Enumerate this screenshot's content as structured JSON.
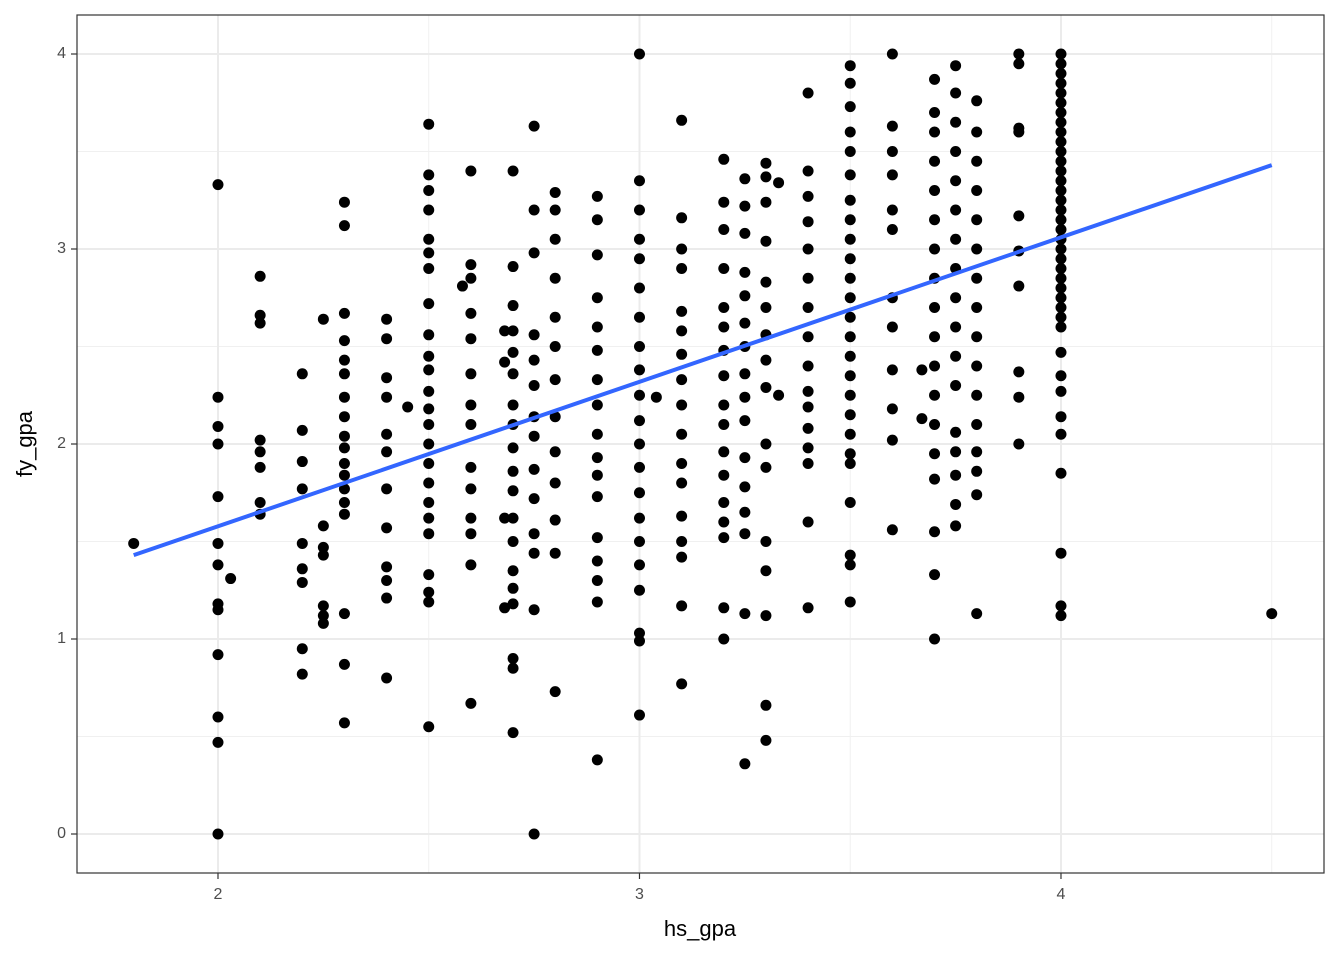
{
  "chart_data": {
    "type": "scatter",
    "x_label": "hs_gpa",
    "y_label": "fy_gpa",
    "xlim": [
      1.6655,
      4.624
    ],
    "ylim": [
      -0.2,
      4.2
    ],
    "xticks": [
      2,
      3,
      4
    ],
    "yticks": [
      0,
      1,
      2,
      3,
      4
    ],
    "minor_xticks": [
      2.5,
      3.5,
      4.5
    ],
    "minor_yticks": [
      0.5,
      1.5,
      2.5,
      3.5
    ],
    "grid": true,
    "color": "#000000",
    "fit": {
      "x": [
        1.8,
        4.5
      ],
      "y": [
        1.43,
        3.43
      ],
      "color": "#3366ff"
    },
    "points": [
      [
        1.8,
        1.49
      ],
      [
        2,
        3.33
      ],
      [
        2,
        2.24
      ],
      [
        2,
        2.09
      ],
      [
        2,
        2.0
      ],
      [
        2,
        1.73
      ],
      [
        2,
        1.49
      ],
      [
        2,
        1.38
      ],
      [
        2,
        1.18
      ],
      [
        2,
        1.15
      ],
      [
        2,
        0.92
      ],
      [
        2,
        0.6
      ],
      [
        2,
        0.47
      ],
      [
        2,
        0.0
      ],
      [
        2.03,
        1.31
      ],
      [
        2.1,
        2.86
      ],
      [
        2.1,
        2.66
      ],
      [
        2.1,
        2.62
      ],
      [
        2.1,
        2.02
      ],
      [
        2.1,
        1.96
      ],
      [
        2.1,
        1.88
      ],
      [
        2.1,
        1.7
      ],
      [
        2.1,
        1.64
      ],
      [
        2.2,
        2.36
      ],
      [
        2.2,
        2.07
      ],
      [
        2.2,
        1.91
      ],
      [
        2.2,
        1.77
      ],
      [
        2.2,
        1.49
      ],
      [
        2.2,
        1.36
      ],
      [
        2.2,
        1.29
      ],
      [
        2.2,
        0.95
      ],
      [
        2.2,
        0.82
      ],
      [
        2.25,
        2.64
      ],
      [
        2.25,
        1.58
      ],
      [
        2.25,
        1.47
      ],
      [
        2.25,
        1.43
      ],
      [
        2.25,
        1.17
      ],
      [
        2.25,
        1.12
      ],
      [
        2.25,
        1.08
      ],
      [
        2.3,
        3.24
      ],
      [
        2.3,
        3.12
      ],
      [
        2.3,
        2.67
      ],
      [
        2.3,
        2.53
      ],
      [
        2.3,
        2.43
      ],
      [
        2.3,
        2.36
      ],
      [
        2.3,
        2.24
      ],
      [
        2.3,
        2.14
      ],
      [
        2.3,
        2.04
      ],
      [
        2.3,
        1.98
      ],
      [
        2.3,
        1.9
      ],
      [
        2.3,
        1.84
      ],
      [
        2.3,
        1.77
      ],
      [
        2.3,
        1.7
      ],
      [
        2.3,
        1.64
      ],
      [
        2.3,
        1.13
      ],
      [
        2.3,
        0.87
      ],
      [
        2.3,
        0.57
      ],
      [
        2.4,
        2.64
      ],
      [
        2.4,
        2.54
      ],
      [
        2.4,
        2.34
      ],
      [
        2.4,
        2.24
      ],
      [
        2.4,
        2.05
      ],
      [
        2.4,
        1.96
      ],
      [
        2.4,
        1.77
      ],
      [
        2.4,
        1.57
      ],
      [
        2.4,
        1.37
      ],
      [
        2.4,
        1.3
      ],
      [
        2.4,
        1.21
      ],
      [
        2.4,
        0.8
      ],
      [
        2.45,
        2.19
      ],
      [
        2.5,
        3.64
      ],
      [
        2.5,
        3.38
      ],
      [
        2.5,
        3.3
      ],
      [
        2.5,
        3.2
      ],
      [
        2.5,
        3.05
      ],
      [
        2.5,
        2.98
      ],
      [
        2.5,
        2.9
      ],
      [
        2.5,
        2.72
      ],
      [
        2.5,
        2.56
      ],
      [
        2.5,
        2.45
      ],
      [
        2.5,
        2.38
      ],
      [
        2.5,
        2.27
      ],
      [
        2.5,
        2.18
      ],
      [
        2.5,
        2.1
      ],
      [
        2.5,
        2.0
      ],
      [
        2.5,
        1.9
      ],
      [
        2.5,
        1.8
      ],
      [
        2.5,
        1.7
      ],
      [
        2.5,
        1.62
      ],
      [
        2.5,
        1.54
      ],
      [
        2.5,
        1.33
      ],
      [
        2.5,
        1.24
      ],
      [
        2.5,
        1.19
      ],
      [
        2.5,
        0.55
      ],
      [
        2.58,
        2.81
      ],
      [
        2.6,
        3.4
      ],
      [
        2.6,
        2.92
      ],
      [
        2.6,
        2.85
      ],
      [
        2.6,
        2.67
      ],
      [
        2.6,
        2.54
      ],
      [
        2.6,
        2.36
      ],
      [
        2.6,
        2.2
      ],
      [
        2.6,
        2.1
      ],
      [
        2.6,
        1.88
      ],
      [
        2.6,
        1.77
      ],
      [
        2.6,
        1.62
      ],
      [
        2.6,
        1.54
      ],
      [
        2.6,
        1.38
      ],
      [
        2.6,
        0.67
      ],
      [
        2.68,
        2.58
      ],
      [
        2.68,
        2.42
      ],
      [
        2.68,
        1.62
      ],
      [
        2.68,
        1.16
      ],
      [
        2.7,
        3.4
      ],
      [
        2.7,
        2.91
      ],
      [
        2.7,
        2.71
      ],
      [
        2.7,
        2.58
      ],
      [
        2.7,
        2.47
      ],
      [
        2.7,
        2.36
      ],
      [
        2.7,
        2.2
      ],
      [
        2.7,
        2.1
      ],
      [
        2.7,
        1.98
      ],
      [
        2.7,
        1.86
      ],
      [
        2.7,
        1.76
      ],
      [
        2.7,
        1.62
      ],
      [
        2.7,
        1.5
      ],
      [
        2.7,
        1.35
      ],
      [
        2.7,
        1.26
      ],
      [
        2.7,
        1.18
      ],
      [
        2.7,
        0.9
      ],
      [
        2.7,
        0.85
      ],
      [
        2.7,
        0.52
      ],
      [
        2.75,
        3.63
      ],
      [
        2.75,
        3.2
      ],
      [
        2.75,
        2.98
      ],
      [
        2.75,
        2.56
      ],
      [
        2.75,
        2.43
      ],
      [
        2.75,
        2.3
      ],
      [
        2.75,
        2.14
      ],
      [
        2.75,
        2.04
      ],
      [
        2.75,
        1.87
      ],
      [
        2.75,
        1.72
      ],
      [
        2.75,
        1.54
      ],
      [
        2.75,
        1.44
      ],
      [
        2.75,
        1.15
      ],
      [
        2.75,
        0.0
      ],
      [
        2.8,
        3.29
      ],
      [
        2.8,
        3.2
      ],
      [
        2.8,
        3.05
      ],
      [
        2.8,
        2.85
      ],
      [
        2.8,
        2.65
      ],
      [
        2.8,
        2.5
      ],
      [
        2.8,
        2.33
      ],
      [
        2.8,
        2.14
      ],
      [
        2.8,
        1.96
      ],
      [
        2.8,
        1.8
      ],
      [
        2.8,
        1.61
      ],
      [
        2.8,
        1.44
      ],
      [
        2.8,
        0.73
      ],
      [
        2.9,
        3.27
      ],
      [
        2.9,
        3.15
      ],
      [
        2.9,
        2.97
      ],
      [
        2.9,
        2.75
      ],
      [
        2.9,
        2.6
      ],
      [
        2.9,
        2.48
      ],
      [
        2.9,
        2.33
      ],
      [
        2.9,
        2.2
      ],
      [
        2.9,
        2.05
      ],
      [
        2.9,
        1.93
      ],
      [
        2.9,
        1.84
      ],
      [
        2.9,
        1.73
      ],
      [
        2.9,
        1.52
      ],
      [
        2.9,
        1.4
      ],
      [
        2.9,
        1.3
      ],
      [
        2.9,
        1.19
      ],
      [
        2.9,
        0.38
      ],
      [
        3,
        4.0
      ],
      [
        3,
        3.35
      ],
      [
        3,
        3.2
      ],
      [
        3,
        3.05
      ],
      [
        3,
        2.95
      ],
      [
        3,
        2.8
      ],
      [
        3,
        2.65
      ],
      [
        3,
        2.5
      ],
      [
        3,
        2.38
      ],
      [
        3,
        2.25
      ],
      [
        3,
        2.12
      ],
      [
        3,
        2.0
      ],
      [
        3,
        1.88
      ],
      [
        3,
        1.75
      ],
      [
        3,
        1.62
      ],
      [
        3,
        1.5
      ],
      [
        3,
        1.38
      ],
      [
        3,
        1.25
      ],
      [
        3,
        1.03
      ],
      [
        3,
        0.99
      ],
      [
        3,
        0.61
      ],
      [
        3.04,
        2.24
      ],
      [
        3.1,
        3.66
      ],
      [
        3.1,
        3.16
      ],
      [
        3.1,
        3.0
      ],
      [
        3.1,
        2.9
      ],
      [
        3.1,
        2.68
      ],
      [
        3.1,
        2.58
      ],
      [
        3.1,
        2.46
      ],
      [
        3.1,
        2.33
      ],
      [
        3.1,
        2.2
      ],
      [
        3.1,
        2.05
      ],
      [
        3.1,
        1.9
      ],
      [
        3.1,
        1.8
      ],
      [
        3.1,
        1.63
      ],
      [
        3.1,
        1.5
      ],
      [
        3.1,
        1.42
      ],
      [
        3.1,
        1.17
      ],
      [
        3.1,
        0.77
      ],
      [
        3.2,
        3.46
      ],
      [
        3.2,
        3.24
      ],
      [
        3.2,
        3.1
      ],
      [
        3.2,
        2.9
      ],
      [
        3.2,
        2.7
      ],
      [
        3.2,
        2.6
      ],
      [
        3.2,
        2.48
      ],
      [
        3.2,
        2.35
      ],
      [
        3.2,
        2.2
      ],
      [
        3.2,
        2.1
      ],
      [
        3.2,
        1.96
      ],
      [
        3.2,
        1.84
      ],
      [
        3.2,
        1.7
      ],
      [
        3.2,
        1.6
      ],
      [
        3.2,
        1.52
      ],
      [
        3.2,
        1.16
      ],
      [
        3.2,
        1.0
      ],
      [
        3.25,
        3.36
      ],
      [
        3.25,
        3.22
      ],
      [
        3.25,
        3.08
      ],
      [
        3.25,
        2.88
      ],
      [
        3.25,
        2.76
      ],
      [
        3.25,
        2.62
      ],
      [
        3.25,
        2.5
      ],
      [
        3.25,
        2.36
      ],
      [
        3.25,
        2.24
      ],
      [
        3.25,
        2.12
      ],
      [
        3.25,
        1.93
      ],
      [
        3.25,
        1.78
      ],
      [
        3.25,
        1.65
      ],
      [
        3.25,
        1.54
      ],
      [
        3.25,
        1.13
      ],
      [
        3.25,
        0.36
      ],
      [
        3.3,
        3.44
      ],
      [
        3.3,
        3.37
      ],
      [
        3.3,
        3.24
      ],
      [
        3.3,
        3.04
      ],
      [
        3.3,
        2.83
      ],
      [
        3.3,
        2.7
      ],
      [
        3.3,
        2.56
      ],
      [
        3.3,
        2.43
      ],
      [
        3.3,
        2.29
      ],
      [
        3.3,
        2.0
      ],
      [
        3.3,
        1.88
      ],
      [
        3.3,
        1.5
      ],
      [
        3.3,
        1.35
      ],
      [
        3.3,
        1.12
      ],
      [
        3.3,
        0.66
      ],
      [
        3.3,
        0.48
      ],
      [
        3.33,
        3.34
      ],
      [
        3.33,
        2.25
      ],
      [
        3.4,
        3.8
      ],
      [
        3.4,
        3.4
      ],
      [
        3.4,
        3.27
      ],
      [
        3.4,
        3.14
      ],
      [
        3.4,
        3.0
      ],
      [
        3.4,
        2.85
      ],
      [
        3.4,
        2.7
      ],
      [
        3.4,
        2.55
      ],
      [
        3.4,
        2.4
      ],
      [
        3.4,
        2.27
      ],
      [
        3.4,
        2.19
      ],
      [
        3.4,
        2.08
      ],
      [
        3.4,
        1.98
      ],
      [
        3.4,
        1.9
      ],
      [
        3.4,
        1.6
      ],
      [
        3.4,
        1.16
      ],
      [
        3.5,
        3.94
      ],
      [
        3.5,
        3.85
      ],
      [
        3.5,
        3.73
      ],
      [
        3.5,
        3.6
      ],
      [
        3.5,
        3.5
      ],
      [
        3.5,
        3.38
      ],
      [
        3.5,
        3.25
      ],
      [
        3.5,
        3.15
      ],
      [
        3.5,
        3.05
      ],
      [
        3.5,
        2.95
      ],
      [
        3.5,
        2.85
      ],
      [
        3.5,
        2.75
      ],
      [
        3.5,
        2.65
      ],
      [
        3.5,
        2.55
      ],
      [
        3.5,
        2.45
      ],
      [
        3.5,
        2.35
      ],
      [
        3.5,
        2.25
      ],
      [
        3.5,
        2.15
      ],
      [
        3.5,
        2.05
      ],
      [
        3.5,
        1.95
      ],
      [
        3.5,
        1.9
      ],
      [
        3.5,
        1.7
      ],
      [
        3.5,
        1.43
      ],
      [
        3.5,
        1.38
      ],
      [
        3.5,
        1.19
      ],
      [
        3.6,
        4.0
      ],
      [
        3.6,
        3.63
      ],
      [
        3.6,
        3.5
      ],
      [
        3.6,
        3.38
      ],
      [
        3.6,
        3.2
      ],
      [
        3.6,
        3.1
      ],
      [
        3.6,
        2.75
      ],
      [
        3.6,
        2.6
      ],
      [
        3.6,
        2.38
      ],
      [
        3.6,
        2.18
      ],
      [
        3.6,
        2.02
      ],
      [
        3.6,
        1.56
      ],
      [
        3.67,
        2.38
      ],
      [
        3.67,
        2.13
      ],
      [
        3.7,
        3.87
      ],
      [
        3.7,
        3.7
      ],
      [
        3.7,
        3.6
      ],
      [
        3.7,
        3.45
      ],
      [
        3.7,
        3.3
      ],
      [
        3.7,
        3.15
      ],
      [
        3.7,
        3.0
      ],
      [
        3.7,
        2.85
      ],
      [
        3.7,
        2.7
      ],
      [
        3.7,
        2.55
      ],
      [
        3.7,
        2.4
      ],
      [
        3.7,
        2.25
      ],
      [
        3.7,
        2.1
      ],
      [
        3.7,
        1.95
      ],
      [
        3.7,
        1.82
      ],
      [
        3.7,
        1.55
      ],
      [
        3.7,
        1.33
      ],
      [
        3.7,
        1.0
      ],
      [
        3.75,
        3.94
      ],
      [
        3.75,
        3.8
      ],
      [
        3.75,
        3.65
      ],
      [
        3.75,
        3.5
      ],
      [
        3.75,
        3.35
      ],
      [
        3.75,
        3.2
      ],
      [
        3.75,
        3.05
      ],
      [
        3.75,
        2.9
      ],
      [
        3.75,
        2.75
      ],
      [
        3.75,
        2.6
      ],
      [
        3.75,
        2.45
      ],
      [
        3.75,
        2.3
      ],
      [
        3.75,
        2.06
      ],
      [
        3.75,
        1.96
      ],
      [
        3.75,
        1.84
      ],
      [
        3.75,
        1.69
      ],
      [
        3.75,
        1.58
      ],
      [
        3.8,
        3.76
      ],
      [
        3.8,
        3.6
      ],
      [
        3.8,
        3.45
      ],
      [
        3.8,
        3.3
      ],
      [
        3.8,
        3.15
      ],
      [
        3.8,
        3.0
      ],
      [
        3.8,
        2.85
      ],
      [
        3.8,
        2.7
      ],
      [
        3.8,
        2.55
      ],
      [
        3.8,
        2.4
      ],
      [
        3.8,
        2.25
      ],
      [
        3.8,
        2.1
      ],
      [
        3.8,
        1.96
      ],
      [
        3.8,
        1.86
      ],
      [
        3.8,
        1.74
      ],
      [
        3.8,
        1.13
      ],
      [
        3.9,
        4.0
      ],
      [
        3.9,
        3.95
      ],
      [
        3.9,
        3.62
      ],
      [
        3.9,
        3.6
      ],
      [
        3.9,
        3.17
      ],
      [
        3.9,
        2.99
      ],
      [
        3.9,
        2.81
      ],
      [
        3.9,
        2.37
      ],
      [
        3.9,
        2.24
      ],
      [
        3.9,
        2.0
      ],
      [
        4,
        4.0
      ],
      [
        4,
        3.95
      ],
      [
        4,
        3.9
      ],
      [
        4,
        3.85
      ],
      [
        4,
        3.8
      ],
      [
        4,
        3.75
      ],
      [
        4,
        3.7
      ],
      [
        4,
        3.65
      ],
      [
        4,
        3.6
      ],
      [
        4,
        3.55
      ],
      [
        4,
        3.5
      ],
      [
        4,
        3.45
      ],
      [
        4,
        3.4
      ],
      [
        4,
        3.35
      ],
      [
        4,
        3.3
      ],
      [
        4,
        3.25
      ],
      [
        4,
        3.2
      ],
      [
        4,
        3.15
      ],
      [
        4,
        3.1
      ],
      [
        4,
        3.05
      ],
      [
        4,
        3.0
      ],
      [
        4,
        2.95
      ],
      [
        4,
        2.9
      ],
      [
        4,
        2.85
      ],
      [
        4,
        2.8
      ],
      [
        4,
        2.75
      ],
      [
        4,
        2.7
      ],
      [
        4,
        2.65
      ],
      [
        4,
        2.6
      ],
      [
        4,
        2.47
      ],
      [
        4,
        2.35
      ],
      [
        4,
        2.27
      ],
      [
        4,
        2.14
      ],
      [
        4,
        2.05
      ],
      [
        4,
        1.85
      ],
      [
        4,
        1.44
      ],
      [
        4,
        1.17
      ],
      [
        4,
        1.12
      ],
      [
        4.5,
        1.13
      ]
    ]
  }
}
